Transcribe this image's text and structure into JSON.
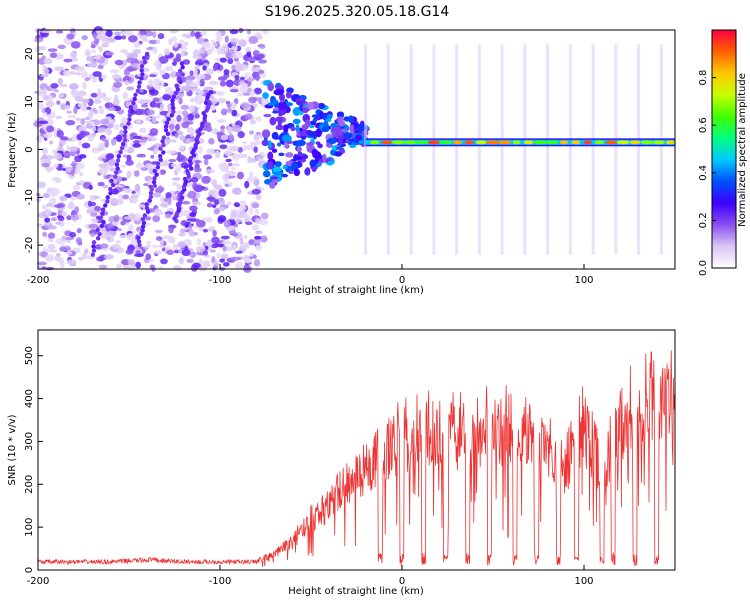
{
  "figure_title": "S196.2025.320.05.18.G14",
  "chart_data": [
    {
      "type": "heatmap",
      "xlabel": "Height of straight line (km)",
      "ylabel": "Frequency (Hz)",
      "xlim": [
        -200,
        150
      ],
      "ylim": [
        -25,
        25
      ],
      "xticks": [
        -200,
        -100,
        0,
        100
      ],
      "yticks": [
        20,
        10,
        0,
        -10,
        -20
      ],
      "colorbar": {
        "label": "Normalized spectral amplitude",
        "range": [
          0,
          1
        ],
        "ticks": [
          "0.0",
          "0.2",
          "0.4",
          "0.6",
          "0.8"
        ],
        "colors": [
          "#ffffff",
          "#d9c6f5",
          "#8a4ff0",
          "#3c00ff",
          "#0050ff",
          "#00c8ff",
          "#00ff80",
          "#40ff00",
          "#c8ff00",
          "#ffc800",
          "#ff6000",
          "#ff0040"
        ]
      },
      "description_features": {
        "scatter_region_x": [
          -200,
          -75
        ],
        "transition_region_x": [
          -75,
          -20
        ],
        "steady_band_x": [
          -20,
          150
        ],
        "steady_band_frequency_hz": 1.5
      }
    },
    {
      "type": "line",
      "xlabel": "Height of straight line (km)",
      "ylabel": "SNR (10 * v/v)",
      "xlim": [
        -200,
        150
      ],
      "ylim": [
        0,
        560
      ],
      "xticks": [
        -200,
        -100,
        0,
        100
      ],
      "yticks": [
        0,
        100,
        200,
        300,
        400,
        500
      ],
      "color": "#ee3333",
      "series": [
        {
          "name": "SNR",
          "x": [
            -200,
            -180,
            -160,
            -140,
            -120,
            -100,
            -80,
            -70,
            -60,
            -50,
            -40,
            -30,
            -20,
            -10,
            0,
            10,
            20,
            30,
            40,
            50,
            60,
            70,
            80,
            90,
            100,
            110,
            120,
            130,
            140,
            150
          ],
          "y": [
            20,
            20,
            20,
            25,
            20,
            20,
            20,
            40,
            70,
            120,
            160,
            200,
            250,
            290,
            320,
            330,
            340,
            330,
            340,
            345,
            345,
            335,
            310,
            250,
            350,
            230,
            360,
            400,
            410,
            410
          ]
        }
      ]
    }
  ]
}
